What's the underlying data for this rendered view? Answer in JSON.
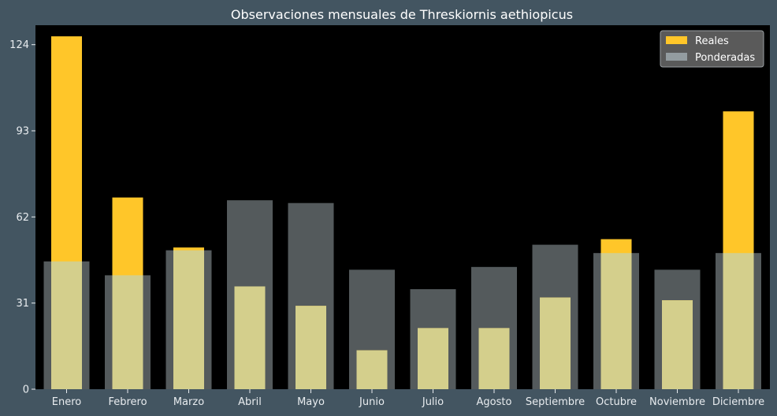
{
  "chart_data": {
    "type": "bar",
    "title": "Observaciones mensuales de Threskiornis aethiopicus",
    "xlabel": "",
    "ylabel": "",
    "categories": [
      "Enero",
      "Febrero",
      "Marzo",
      "Abril",
      "Mayo",
      "Junio",
      "Julio",
      "Agosto",
      "Septiembre",
      "Octubre",
      "Noviembre",
      "Diciembre"
    ],
    "series": [
      {
        "name": "Reales",
        "values": [
          127,
          69,
          51,
          37,
          30,
          14,
          22,
          22,
          33,
          54,
          32,
          100
        ],
        "color": "#ffc629"
      },
      {
        "name": "Ponderadas",
        "values": [
          46,
          41,
          50,
          68,
          67,
          43,
          36,
          44,
          52,
          49,
          43,
          49
        ],
        "color": "#a7b3b8"
      }
    ],
    "yticks": [
      0,
      31,
      62,
      93,
      124
    ],
    "ylim": [
      0,
      131
    ],
    "grid": false,
    "legend_position": "top-right",
    "colors": {
      "background": "#435561",
      "plot_background": "#000000",
      "overlap": "#d4cf8c"
    }
  }
}
